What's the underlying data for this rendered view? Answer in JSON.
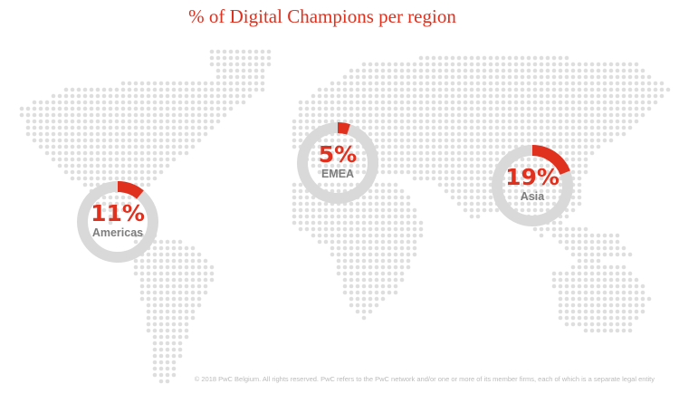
{
  "title": "% of Digital Champions per region",
  "chart_data": [
    {
      "type": "donut",
      "categories": [
        "Americas"
      ],
      "values": [
        11
      ],
      "value_labels": [
        "11%"
      ],
      "ylim": [
        0,
        100
      ],
      "color": "#e0301e",
      "track_color": "#d9d9d9"
    },
    {
      "type": "donut",
      "categories": [
        "EMEA"
      ],
      "values": [
        5
      ],
      "value_labels": [
        "5%"
      ],
      "ylim": [
        0,
        100
      ],
      "color": "#e0301e",
      "track_color": "#d9d9d9"
    },
    {
      "type": "donut",
      "categories": [
        "Asia"
      ],
      "values": [
        19
      ],
      "value_labels": [
        "19%"
      ],
      "ylim": [
        0,
        100
      ],
      "color": "#e0301e",
      "track_color": "#d9d9d9"
    }
  ],
  "footer": "© 2018 PwC Belgium. All rights reserved. PwC refers to the PwC network and/or one or more of its member firms, each of which is a separate legal entity"
}
